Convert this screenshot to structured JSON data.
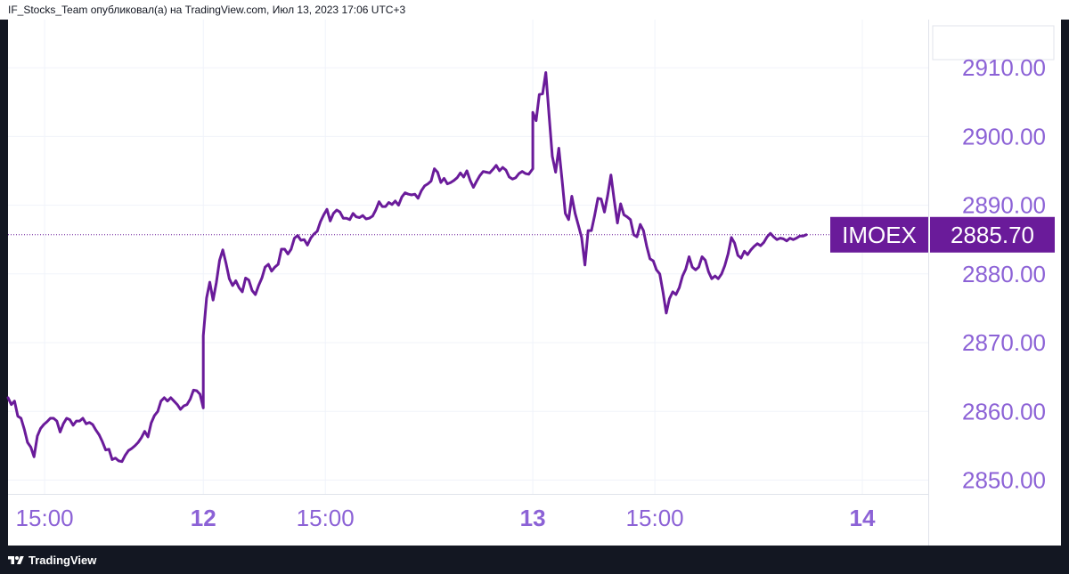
{
  "header": {
    "text": "IF_Stocks_Team опубликовал(а) на TradingView.com, Июл 13, 2023 17:06 UTC+3"
  },
  "footer": {
    "brand": "TradingView"
  },
  "colors": {
    "line": "#6a1b9a",
    "axis_text": "#8c62d6",
    "label_bg": "#6a1b9a",
    "label_text": "#ffffff",
    "grid": "#f0f3fa"
  },
  "chart_data": {
    "type": "line",
    "series": [
      {
        "name": "IMOEX",
        "values": [
          [
            "11 13:30",
            2862.0
          ],
          [
            "11 13:38",
            2861.0
          ],
          [
            "11 13:46",
            2861.5
          ],
          [
            "11 13:54",
            2859.3
          ],
          [
            "11 14:02",
            2859.0
          ],
          [
            "11 14:10",
            2857.4
          ],
          [
            "11 14:18",
            2855.5
          ],
          [
            "11 14:26",
            2854.8
          ],
          [
            "11 14:34",
            2853.4
          ],
          [
            "11 14:42",
            2856.4
          ],
          [
            "11 14:50",
            2857.5
          ],
          [
            "11 14:58",
            2858.1
          ],
          [
            "11 15:06",
            2858.5
          ],
          [
            "11 15:14",
            2859.0
          ],
          [
            "11 15:22",
            2859.0
          ],
          [
            "11 15:30",
            2858.6
          ],
          [
            "11 15:38",
            2857.0
          ],
          [
            "11 15:46",
            2858.2
          ],
          [
            "11 15:54",
            2859.0
          ],
          [
            "11 16:02",
            2858.8
          ],
          [
            "11 16:10",
            2858.0
          ],
          [
            "11 16:18",
            2858.6
          ],
          [
            "11 16:26",
            2858.6
          ],
          [
            "11 16:34",
            2859.0
          ],
          [
            "11 16:42",
            2858.2
          ],
          [
            "11 16:50",
            2858.4
          ],
          [
            "11 16:58",
            2858.1
          ],
          [
            "11 17:06",
            2857.3
          ],
          [
            "11 17:14",
            2856.6
          ],
          [
            "11 17:22",
            2855.6
          ],
          [
            "11 17:30",
            2854.4
          ],
          [
            "11 17:38",
            2854.5
          ],
          [
            "11 17:46",
            2853.0
          ],
          [
            "11 17:54",
            2853.2
          ],
          [
            "11 18:02",
            2852.8
          ],
          [
            "11 18:10",
            2852.7
          ],
          [
            "11 18:18",
            2853.6
          ],
          [
            "11 18:26",
            2854.3
          ],
          [
            "11 18:34",
            2854.6
          ],
          [
            "11 18:42",
            2855.0
          ],
          [
            "11 18:50",
            2855.5
          ],
          [
            "11 18:58",
            2856.2
          ],
          [
            "11 19:06",
            2857.1
          ],
          [
            "11 19:14",
            2856.3
          ],
          [
            "11 19:22",
            2858.3
          ],
          [
            "11 19:30",
            2859.4
          ],
          [
            "11 19:38",
            2860.0
          ],
          [
            "11 19:46",
            2861.5
          ],
          [
            "11 19:54",
            2862.0
          ],
          [
            "11 20:02",
            2861.5
          ],
          [
            "11 20:10",
            2862.0
          ],
          [
            "11 20:18",
            2861.5
          ],
          [
            "11 20:26",
            2861.0
          ],
          [
            "11 20:34",
            2860.3
          ],
          [
            "11 20:42",
            2860.8
          ],
          [
            "11 20:50",
            2861.0
          ],
          [
            "11 20:58",
            2861.8
          ],
          [
            "11 21:06",
            2863.1
          ],
          [
            "11 21:14",
            2863.0
          ],
          [
            "11 21:22",
            2862.5
          ],
          [
            "11 21:30",
            2860.5
          ],
          [
            "12 10:00",
            2871.0
          ],
          [
            "12 10:08",
            2876.5
          ],
          [
            "12 10:16",
            2878.8
          ],
          [
            "12 10:24",
            2876.2
          ],
          [
            "12 10:32",
            2878.7
          ],
          [
            "12 10:40",
            2882.0
          ],
          [
            "12 10:48",
            2883.5
          ],
          [
            "12 10:56",
            2881.5
          ],
          [
            "12 11:04",
            2879.3
          ],
          [
            "12 11:12",
            2878.3
          ],
          [
            "12 11:20",
            2879.0
          ],
          [
            "12 11:28",
            2878.0
          ],
          [
            "12 11:36",
            2877.4
          ],
          [
            "12 11:44",
            2879.4
          ],
          [
            "12 11:52",
            2879.1
          ],
          [
            "12 12:00",
            2877.6
          ],
          [
            "12 12:08",
            2877.0
          ],
          [
            "12 12:16",
            2878.3
          ],
          [
            "12 12:24",
            2879.4
          ],
          [
            "12 12:32",
            2881.0
          ],
          [
            "12 12:40",
            2881.4
          ],
          [
            "12 12:48",
            2880.4
          ],
          [
            "12 12:56",
            2881.0
          ],
          [
            "12 13:04",
            2881.4
          ],
          [
            "12 13:12",
            2883.6
          ],
          [
            "12 13:20",
            2883.6
          ],
          [
            "12 13:28",
            2882.9
          ],
          [
            "12 13:36",
            2883.6
          ],
          [
            "12 13:44",
            2885.2
          ],
          [
            "12 13:52",
            2885.6
          ],
          [
            "12 14:00",
            2884.9
          ],
          [
            "12 14:08",
            2885.0
          ],
          [
            "12 14:16",
            2884.2
          ],
          [
            "12 14:24",
            2885.2
          ],
          [
            "12 14:32",
            2885.8
          ],
          [
            "12 14:40",
            2886.2
          ],
          [
            "12 14:48",
            2887.6
          ],
          [
            "12 14:56",
            2888.6
          ],
          [
            "12 15:04",
            2889.4
          ],
          [
            "12 15:12",
            2887.7
          ],
          [
            "12 15:20",
            2888.8
          ],
          [
            "12 15:28",
            2889.3
          ],
          [
            "12 15:36",
            2889.0
          ],
          [
            "12 15:44",
            2888.1
          ],
          [
            "12 15:52",
            2888.1
          ],
          [
            "12 16:00",
            2887.9
          ],
          [
            "12 16:08",
            2888.8
          ],
          [
            "12 16:16",
            2888.3
          ],
          [
            "12 16:24",
            2888.2
          ],
          [
            "12 16:32",
            2888.5
          ],
          [
            "12 16:40",
            2888.0
          ],
          [
            "12 16:48",
            2888.1
          ],
          [
            "12 16:56",
            2888.4
          ],
          [
            "12 17:04",
            2889.3
          ],
          [
            "12 17:12",
            2890.5
          ],
          [
            "12 17:20",
            2889.8
          ],
          [
            "12 17:28",
            2889.8
          ],
          [
            "12 17:36",
            2890.4
          ],
          [
            "12 17:44",
            2890.1
          ],
          [
            "12 17:52",
            2890.6
          ],
          [
            "12 18:00",
            2890.0
          ],
          [
            "12 18:08",
            2891.2
          ],
          [
            "12 18:16",
            2891.8
          ],
          [
            "12 18:24",
            2891.6
          ],
          [
            "12 18:32",
            2891.5
          ],
          [
            "12 18:40",
            2891.6
          ],
          [
            "12 18:48",
            2891.0
          ],
          [
            "12 18:56",
            2892.1
          ],
          [
            "12 19:04",
            2892.8
          ],
          [
            "12 19:12",
            2893.1
          ],
          [
            "12 19:20",
            2893.5
          ],
          [
            "12 19:28",
            2895.3
          ],
          [
            "12 19:36",
            2894.8
          ],
          [
            "12 19:44",
            2893.3
          ],
          [
            "12 19:52",
            2893.9
          ],
          [
            "12 20:00",
            2893.1
          ],
          [
            "12 20:08",
            2893.3
          ],
          [
            "12 20:16",
            2893.6
          ],
          [
            "12 20:24",
            2894.0
          ],
          [
            "12 20:32",
            2894.7
          ],
          [
            "12 20:40",
            2894.1
          ],
          [
            "12 20:48",
            2895.0
          ],
          [
            "12 20:56",
            2893.6
          ],
          [
            "12 21:04",
            2892.6
          ],
          [
            "12 21:12",
            2893.5
          ],
          [
            "12 21:20",
            2894.3
          ],
          [
            "12 21:28",
            2894.9
          ],
          [
            "12 21:36",
            2894.8
          ],
          [
            "12 21:44",
            2894.7
          ],
          [
            "12 21:52",
            2895.2
          ],
          [
            "12 22:00",
            2895.8
          ],
          [
            "12 22:08",
            2895.0
          ],
          [
            "12 22:16",
            2895.5
          ],
          [
            "12 22:24",
            2895.1
          ],
          [
            "12 22:32",
            2894.1
          ],
          [
            "12 22:40",
            2893.8
          ],
          [
            "12 22:48",
            2894.0
          ],
          [
            "12 22:56",
            2894.6
          ],
          [
            "12 23:04",
            2894.9
          ],
          [
            "12 23:12",
            2894.6
          ],
          [
            "12 23:20",
            2894.5
          ],
          [
            "12 23:30",
            2895.3
          ],
          [
            "13 10:00",
            2903.5
          ],
          [
            "13 10:08",
            2902.3
          ],
          [
            "13 10:16",
            2906.1
          ],
          [
            "13 10:24",
            2906.2
          ],
          [
            "13 10:32",
            2909.3
          ],
          [
            "13 10:40",
            2903.0
          ],
          [
            "13 10:48",
            2897.1
          ],
          [
            "13 10:56",
            2894.8
          ],
          [
            "13 11:04",
            2898.3
          ],
          [
            "13 11:12",
            2893.6
          ],
          [
            "13 11:20",
            2888.8
          ],
          [
            "13 11:28",
            2887.9
          ],
          [
            "13 11:36",
            2891.3
          ],
          [
            "13 11:44",
            2888.8
          ],
          [
            "13 11:52",
            2887.1
          ],
          [
            "13 12:00",
            2885.3
          ],
          [
            "13 12:08",
            2881.3
          ],
          [
            "13 12:16",
            2886.3
          ],
          [
            "13 12:24",
            2886.3
          ],
          [
            "13 12:32",
            2888.5
          ],
          [
            "13 12:40",
            2891.0
          ],
          [
            "13 12:48",
            2890.9
          ],
          [
            "13 12:56",
            2889.0
          ],
          [
            "13 13:04",
            2891.4
          ],
          [
            "13 13:12",
            2894.4
          ],
          [
            "13 13:20",
            2890.8
          ],
          [
            "13 13:28",
            2887.4
          ],
          [
            "13 13:36",
            2890.2
          ],
          [
            "13 13:44",
            2888.6
          ],
          [
            "13 13:52",
            2888.3
          ],
          [
            "13 14:00",
            2887.9
          ],
          [
            "13 14:08",
            2885.7
          ],
          [
            "13 14:16",
            2885.4
          ],
          [
            "13 14:24",
            2887.2
          ],
          [
            "13 14:32",
            2886.3
          ],
          [
            "13 14:40",
            2884.0
          ],
          [
            "13 14:48",
            2882.2
          ],
          [
            "13 14:56",
            2881.9
          ],
          [
            "13 15:04",
            2880.6
          ],
          [
            "13 15:12",
            2880.0
          ],
          [
            "13 15:20",
            2877.4
          ],
          [
            "13 15:28",
            2874.3
          ],
          [
            "13 15:36",
            2876.4
          ],
          [
            "13 15:44",
            2877.4
          ],
          [
            "13 15:52",
            2877.0
          ],
          [
            "13 16:00",
            2878.0
          ],
          [
            "13 16:08",
            2879.7
          ],
          [
            "13 16:16",
            2880.7
          ],
          [
            "13 16:24",
            2882.5
          ],
          [
            "13 16:32",
            2881.0
          ],
          [
            "13 16:40",
            2880.6
          ],
          [
            "13 16:48",
            2881.0
          ],
          [
            "13 16:56",
            2882.5
          ],
          [
            "13 17:04",
            2882.0
          ],
          [
            "13 17:12",
            2880.3
          ],
          [
            "13 17:20",
            2879.3
          ],
          [
            "13 17:28",
            2879.7
          ],
          [
            "13 17:36",
            2879.3
          ],
          [
            "13 17:44",
            2880.0
          ],
          [
            "13 17:52",
            2881.2
          ],
          [
            "13 18:00",
            2882.9
          ],
          [
            "13 18:08",
            2885.3
          ],
          [
            "13 18:16",
            2884.5
          ],
          [
            "13 18:24",
            2882.7
          ],
          [
            "13 18:32",
            2882.3
          ],
          [
            "13 18:40",
            2883.3
          ],
          [
            "13 18:48",
            2882.8
          ],
          [
            "13 18:56",
            2883.5
          ],
          [
            "13 19:04",
            2884.0
          ],
          [
            "13 19:12",
            2884.4
          ],
          [
            "13 19:20",
            2884.1
          ],
          [
            "13 19:28",
            2884.6
          ],
          [
            "13 19:36",
            2885.4
          ],
          [
            "13 19:44",
            2885.9
          ],
          [
            "13 19:52",
            2885.4
          ],
          [
            "13 20:00",
            2885.0
          ],
          [
            "13 20:08",
            2885.2
          ],
          [
            "13 20:16",
            2885.1
          ],
          [
            "13 20:24",
            2884.8
          ],
          [
            "13 20:32",
            2885.2
          ],
          [
            "13 20:40",
            2885.0
          ],
          [
            "13 20:48",
            2885.2
          ],
          [
            "13 20:56",
            2885.5
          ],
          [
            "13 21:04",
            2885.5
          ],
          [
            "13 21:12",
            2885.7
          ]
        ]
      }
    ],
    "x_ticks": [
      "15:00",
      "12",
      "15:00",
      "13",
      "15:00",
      "14"
    ],
    "y_ticks": [
      "2910.00",
      "2900.00",
      "2890.00",
      "2880.00",
      "2870.00",
      "2860.00",
      "2850.00"
    ],
    "ylim": [
      2848.0,
      2917.0
    ],
    "last_value": {
      "symbol": "IMOEX",
      "price": "2885.70",
      "value": 2885.7
    },
    "grid": true,
    "legend": "none"
  }
}
